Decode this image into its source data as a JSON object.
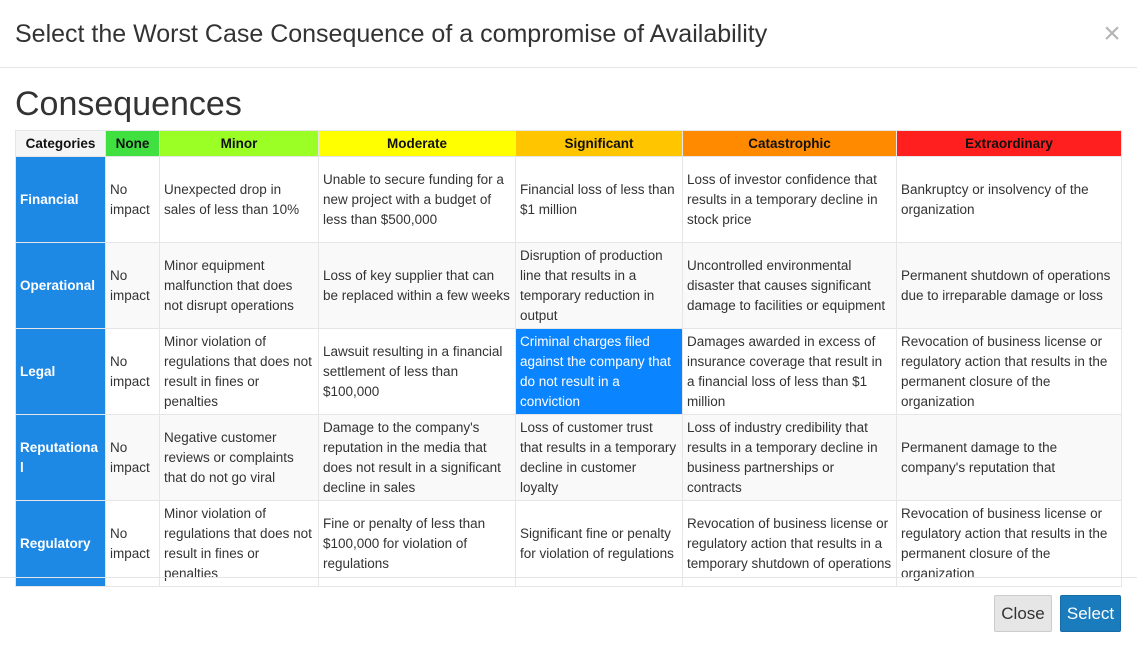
{
  "dialog": {
    "title": "Select the Worst Case Consequence of a compromise of Availability",
    "close_glyph": "×",
    "section_heading": "Consequences"
  },
  "table": {
    "columns": [
      {
        "label": "Categories",
        "color": "#f5f5f5"
      },
      {
        "label": "None",
        "color": "#3fe03f"
      },
      {
        "label": "Minor",
        "color": "#9bff25"
      },
      {
        "label": "Moderate",
        "color": "#ffff00"
      },
      {
        "label": "Significant",
        "color": "#ffc600"
      },
      {
        "label": "Catastrophic",
        "color": "#ff8a00"
      },
      {
        "label": "Extraordinary",
        "color": "#ff1f1f"
      }
    ],
    "rows": [
      {
        "category": "Financial",
        "cells": [
          "No impact",
          "Unexpected drop in sales of less than 10%",
          "Unable to secure funding for a new project with a budget of less than $500,000",
          "Financial loss of less than $1 million",
          "Loss of investor confidence that results in a temporary decline in stock price",
          "Bankruptcy or insolvency of the organization"
        ]
      },
      {
        "category": "Operational",
        "cells": [
          "No impact",
          "Minor equipment malfunction that does not disrupt operations",
          "Loss of key supplier that can be replaced within a few weeks",
          "Disruption of production line that results in a temporary reduction in output",
          "Uncontrolled environmental disaster that causes significant damage to facilities or equipment",
          "Permanent shutdown of operations due to irreparable damage or loss"
        ]
      },
      {
        "category": "Legal",
        "cells": [
          "No impact",
          "Minor violation of regulations that does not result in fines or penalties",
          "Lawsuit resulting in a financial settlement of less than $100,000",
          "Criminal charges filed against the company that do not result in a conviction",
          "Damages awarded in excess of insurance coverage that result in a financial loss of less than $1 million",
          "Revocation of business license or regulatory action that results in the permanent closure of the organization"
        ]
      },
      {
        "category": "Reputational",
        "cells": [
          "No impact",
          "Negative customer reviews or complaints that do not go viral",
          "Damage to the company's reputation in the media that does not result in a significant decline in sales",
          "Loss of customer trust that results in a temporary decline in customer loyalty",
          "Loss of industry credibility that results in a temporary decline in business partnerships or contracts",
          "Permanent damage to the company's reputation that"
        ]
      },
      {
        "category": "Regulatory",
        "cells": [
          "No impact",
          "Minor violation of regulations that does not result in fines or penalties",
          "Fine or penalty of less than $100,000 for violation of regulations",
          "Significant fine or penalty for violation of regulations",
          "Revocation of business license or regulatory action that results in a temporary shutdown of operations",
          "Revocation of business license or regulatory action that results in the permanent closure of the organization"
        ]
      }
    ],
    "selected": {
      "row": 2,
      "col": 3
    }
  },
  "footer": {
    "close_label": "Close",
    "select_label": "Select"
  },
  "colors": {
    "row_label_bg": "#1e88e5",
    "selected_bg": "#0a84ff",
    "select_button_bg": "#1a7bbd"
  }
}
